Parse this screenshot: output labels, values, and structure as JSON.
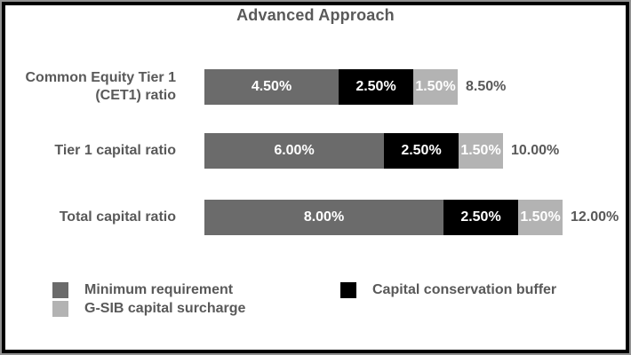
{
  "chart_data": {
    "type": "bar",
    "orientation": "horizontal",
    "stacked": true,
    "title": "Advanced Approach",
    "categories": [
      "Common Equity Tier 1 (CET1) ratio",
      "Tier 1 capital ratio",
      "Total capital ratio"
    ],
    "category_lines": [
      [
        "Common Equity Tier 1",
        "(CET1) ratio"
      ],
      [
        "Tier 1 capital ratio"
      ],
      [
        "Total capital ratio"
      ]
    ],
    "series": [
      {
        "name": "Minimum requirement",
        "color": "#6b6b6b",
        "values": [
          4.5,
          6.0,
          8.0
        ]
      },
      {
        "name": "Capital conservation buffer",
        "color": "#000000",
        "values": [
          2.5,
          2.5,
          2.5
        ]
      },
      {
        "name": "G-SIB capital surcharge",
        "color": "#b3b3b3",
        "values": [
          1.5,
          1.5,
          1.5
        ]
      }
    ],
    "segment_labels": [
      [
        "4.50%",
        "2.50%",
        "1.50%"
      ],
      [
        "6.00%",
        "2.50%",
        "1.50%"
      ],
      [
        "8.00%",
        "2.50%",
        "1.50%"
      ]
    ],
    "totals": [
      8.5,
      10.0,
      12.0
    ],
    "total_labels": [
      "8.50%",
      "10.00%",
      "12.00%"
    ],
    "xlim": [
      0,
      12
    ],
    "grid": false,
    "legend_position": "bottom"
  },
  "colors": {
    "label_text": "#595959",
    "segment_text": "#ffffff",
    "border_black": "#000000",
    "border_gray": "#919191",
    "background": "#ffffff"
  }
}
